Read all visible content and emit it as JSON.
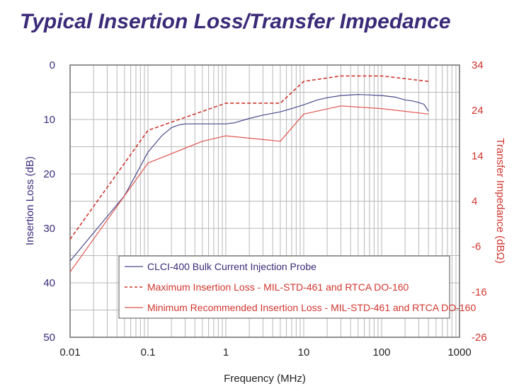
{
  "chart_data": {
    "type": "line",
    "title": "Typical Insertion Loss/Transfer Impedance",
    "xlabel": "Frequency (MHz)",
    "ylabel": "Insertion Loss (dB)",
    "y2label": "Transfer Impedance (dBΩ)",
    "xscale": "log",
    "xlim": [
      0.01,
      1000
    ],
    "ylim": [
      50,
      0
    ],
    "y2lim": [
      -26,
      34
    ],
    "grid": true,
    "legend_position": "bottom-center",
    "x_ticks": [
      "0.01",
      "0.1",
      "1",
      "10",
      "100",
      "1000"
    ],
    "y_ticks": [
      "0",
      "10",
      "20",
      "30",
      "40",
      "50"
    ],
    "y2_ticks": [
      "34",
      "24",
      "14",
      "4",
      "-6",
      "-16",
      "-26"
    ],
    "colors": {
      "title": "#3b2a78",
      "probe": "#4a4a8c",
      "max": "#d0362f",
      "min": "#e0564f",
      "grid": "#b8b8b8",
      "frame": "#777777"
    },
    "series": [
      {
        "name": "CLCI-400 Bulk Current Injection Probe",
        "style": "solid",
        "x": [
          0.01,
          0.05,
          0.1,
          0.15,
          0.2,
          0.25,
          0.3,
          0.5,
          1.0,
          1.3,
          2,
          3,
          5,
          7,
          10,
          15,
          20,
          30,
          50,
          70,
          100,
          150,
          200,
          250,
          300,
          350,
          400
        ],
        "y": [
          36,
          24,
          16,
          13,
          11.5,
          11,
          10.8,
          10.8,
          10.8,
          10.6,
          9.8,
          9.2,
          8.6,
          8.0,
          7.3,
          6.4,
          6.0,
          5.6,
          5.4,
          5.5,
          5.6,
          5.9,
          6.4,
          6.6,
          6.9,
          7.2,
          8.5
        ]
      },
      {
        "name": "Maximum Insertion Loss - MIL-STD-461 and RTCA DO-160",
        "style": "dashed",
        "x": [
          0.01,
          0.1,
          1,
          5,
          10,
          30,
          100,
          400
        ],
        "y": [
          32,
          12,
          7,
          7,
          3,
          2,
          2,
          3
        ]
      },
      {
        "name": "Minimum Recommended Insertion Loss - MIL-STD-461 and RTCA DO-160",
        "style": "solid",
        "x": [
          0.01,
          0.1,
          0.5,
          1,
          5,
          10,
          30,
          100,
          400
        ],
        "y": [
          38,
          18,
          14,
          13,
          14,
          9,
          7.5,
          8,
          9
        ]
      }
    ]
  }
}
